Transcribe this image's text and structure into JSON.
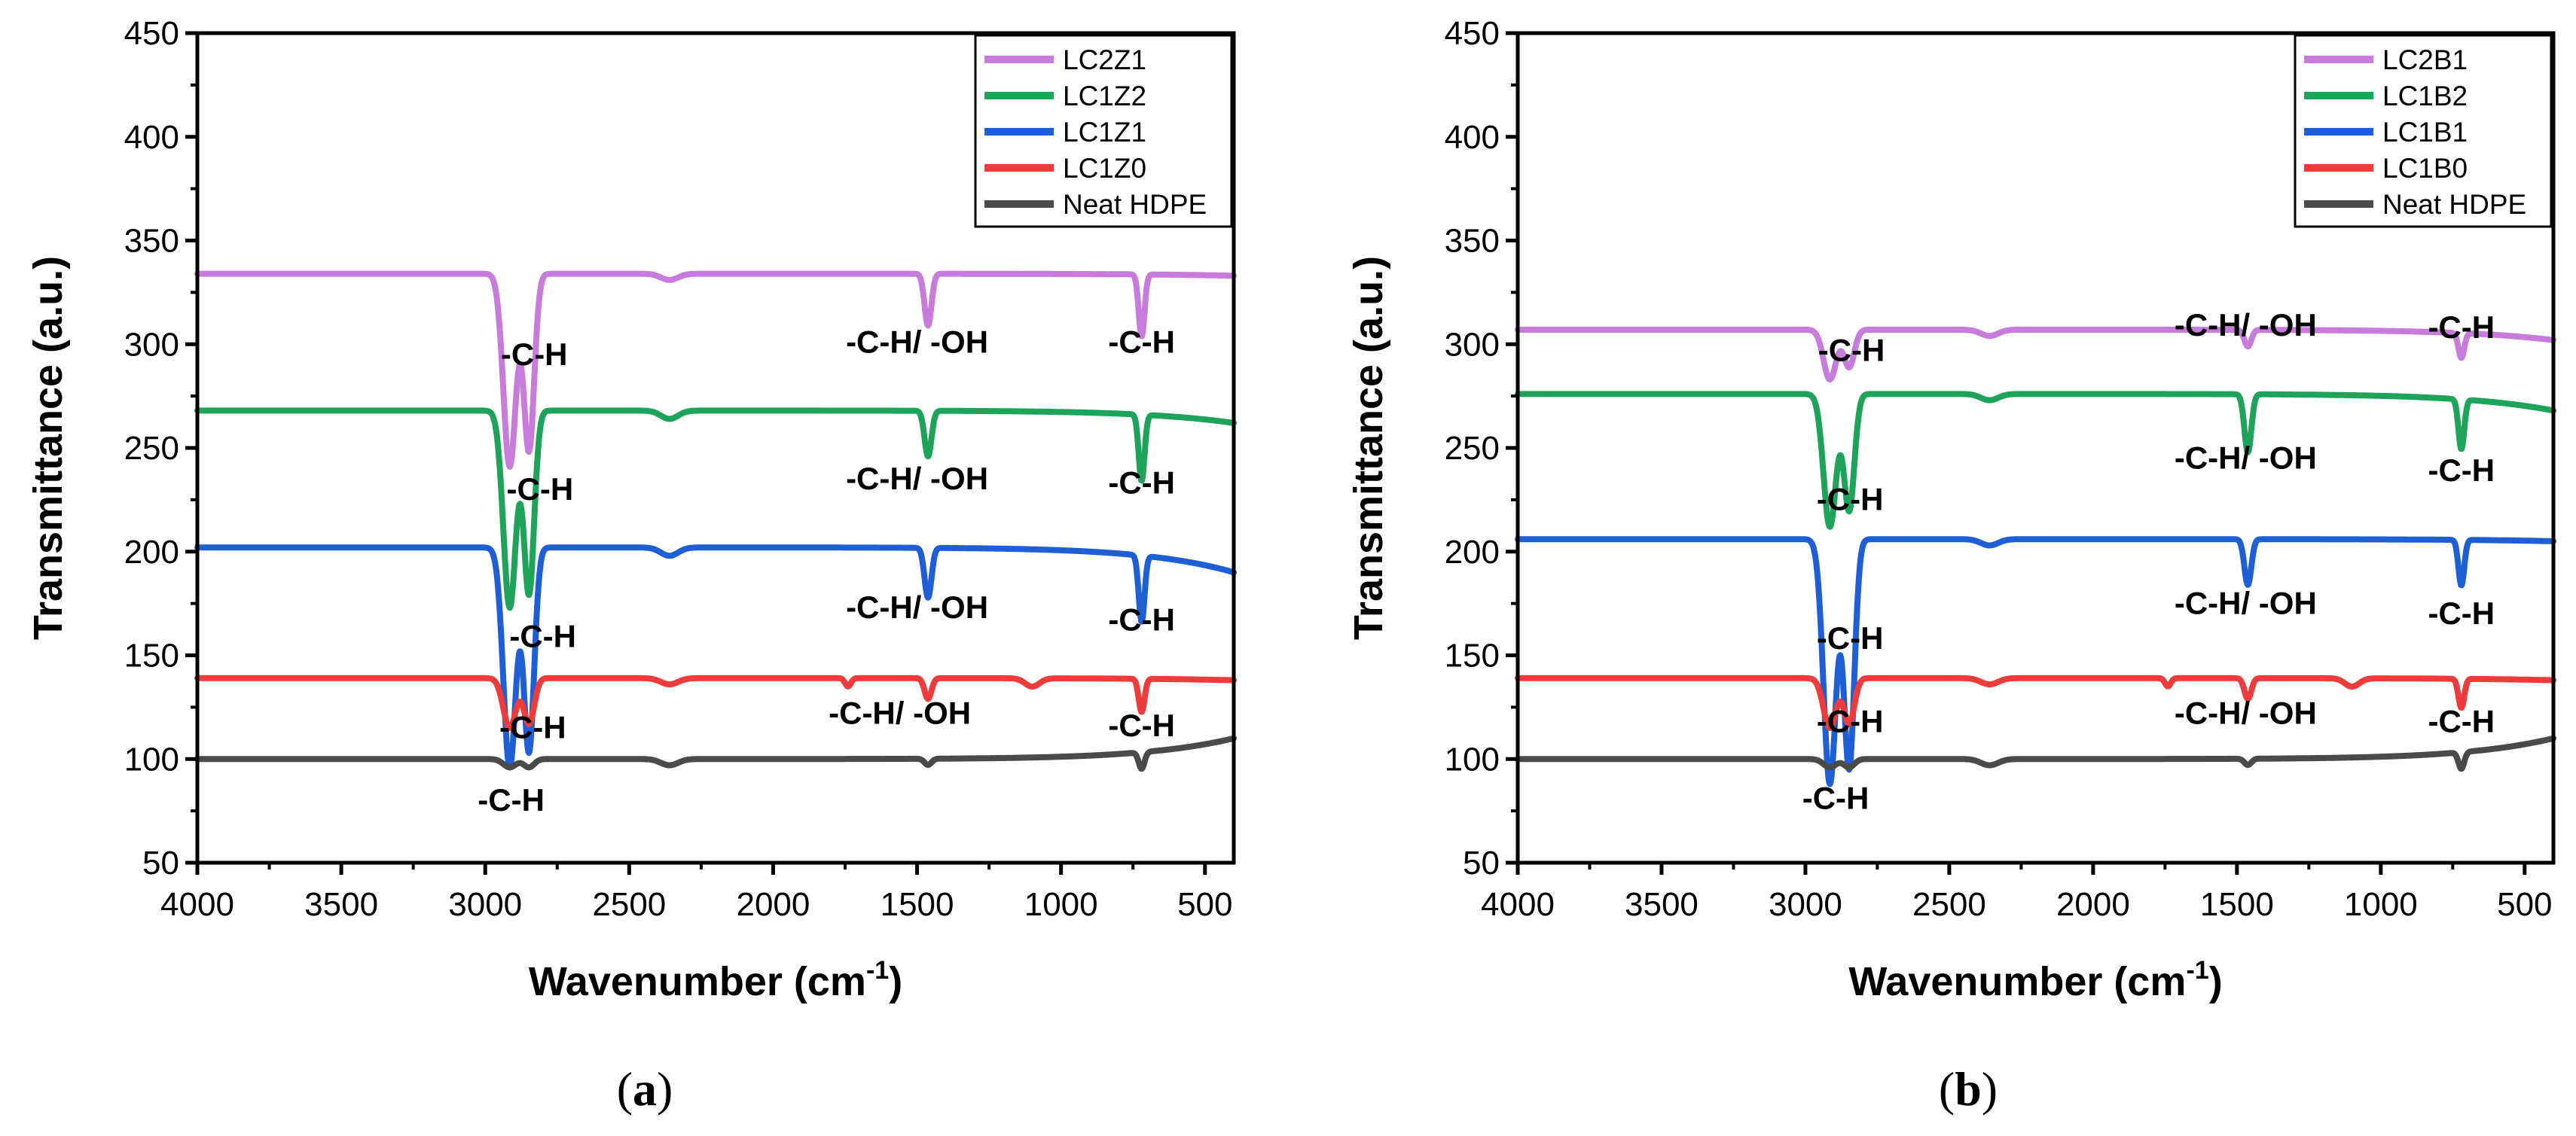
{
  "chart_data": [
    {
      "panel_label": "(a)",
      "type": "line",
      "xlabel_main": "Wavenumber (cm",
      "xlabel_sup": "-1",
      "xlabel_end": ")",
      "ylabel": "Transmittance (a.u.)",
      "xlim": [
        4000,
        400
      ],
      "ylim": [
        50,
        450
      ],
      "xticks": [
        4000,
        3500,
        3000,
        2500,
        2000,
        1500,
        1000,
        500
      ],
      "yticks": [
        50,
        100,
        150,
        200,
        250,
        300,
        350,
        400,
        450
      ],
      "legend_position": "top-right",
      "series": [
        {
          "name": "LC2Z1",
          "color": "#c77cdb",
          "baseline": 334,
          "end_value": 333,
          "peaks": [
            [
              2915,
              93,
              22
            ],
            [
              2848,
              85,
              18
            ],
            [
              2360,
              3,
              30
            ],
            [
              1462,
              25,
              12
            ],
            [
              720,
              30,
              10
            ]
          ]
        },
        {
          "name": "LC1Z2",
          "color": "#1ea35a",
          "baseline": 268,
          "end_value": 262,
          "peaks": [
            [
              2915,
              95,
              22
            ],
            [
              2848,
              88,
              18
            ],
            [
              2360,
              4,
              30
            ],
            [
              1462,
              22,
              12
            ],
            [
              720,
              32,
              10
            ]
          ]
        },
        {
          "name": "LC1Z1",
          "color": "#1f5fd6",
          "baseline": 202,
          "end_value": 190,
          "peaks": [
            [
              2915,
              106,
              22
            ],
            [
              2848,
              98,
              18
            ],
            [
              2360,
              4,
              30
            ],
            [
              1462,
              24,
              12
            ],
            [
              720,
              32,
              10
            ]
          ]
        },
        {
          "name": "LC1Z0",
          "color": "#ee3b3b",
          "baseline": 139,
          "end_value": 138,
          "peaks": [
            [
              2915,
              24,
              22
            ],
            [
              2848,
              22,
              18
            ],
            [
              2360,
              3,
              30
            ],
            [
              1740,
              4,
              10
            ],
            [
              1462,
              10,
              12
            ],
            [
              1100,
              4,
              25
            ],
            [
              720,
              16,
              10
            ]
          ]
        },
        {
          "name": "Neat HDPE",
          "color": "#4a4a4a",
          "baseline": 100,
          "end_value": 110,
          "peaks": [
            [
              2915,
              4,
              22
            ],
            [
              2848,
              4,
              18
            ],
            [
              2360,
              3,
              30
            ],
            [
              1462,
              3,
              12
            ],
            [
              720,
              8,
              10
            ]
          ]
        }
      ],
      "annotations": [
        {
          "text": "-C-H",
          "x": 2830,
          "y": 290
        },
        {
          "text": "-C-H/ -OH",
          "x": 1500,
          "y": 296
        },
        {
          "text": "-C-H",
          "x": 720,
          "y": 296
        },
        {
          "text": "-C-H",
          "x": 2810,
          "y": 225
        },
        {
          "text": "-C-H/ -OH",
          "x": 1500,
          "y": 230
        },
        {
          "text": "-C-H",
          "x": 720,
          "y": 228
        },
        {
          "text": "-C-H",
          "x": 2800,
          "y": 154
        },
        {
          "text": "-C-H/ -OH",
          "x": 1500,
          "y": 168
        },
        {
          "text": "-C-H",
          "x": 720,
          "y": 162
        },
        {
          "text": "-C-H",
          "x": 2835,
          "y": 110
        },
        {
          "text": "-C-H/ -OH",
          "x": 1560,
          "y": 117
        },
        {
          "text": "-C-H",
          "x": 720,
          "y": 111
        },
        {
          "text": "-C-H",
          "x": 2910,
          "y": 75
        }
      ]
    },
    {
      "panel_label": "(b)",
      "type": "line",
      "xlabel_main": "Wavenumber (cm",
      "xlabel_sup": "-1",
      "xlabel_end": ")",
      "ylabel": "Transmittance (a.u.)",
      "xlim": [
        4000,
        400
      ],
      "ylim": [
        50,
        450
      ],
      "xticks": [
        4000,
        3500,
        3000,
        2500,
        2000,
        1500,
        1000,
        500
      ],
      "yticks": [
        50,
        100,
        150,
        200,
        250,
        300,
        350,
        400,
        450
      ],
      "legend_position": "top-right",
      "series": [
        {
          "name": "LC2B1",
          "color": "#c77cdb",
          "baseline": 307,
          "end_value": 302,
          "peaks": [
            [
              2915,
              24,
              22
            ],
            [
              2848,
              18,
              18
            ],
            [
              2360,
              3,
              30
            ],
            [
              1462,
              8,
              12
            ],
            [
              720,
              12,
              10
            ]
          ]
        },
        {
          "name": "LC1B2",
          "color": "#1ea35a",
          "baseline": 276,
          "end_value": 268,
          "peaks": [
            [
              2915,
              64,
              22
            ],
            [
              2848,
              56,
              18
            ],
            [
              2360,
              3,
              30
            ],
            [
              1462,
              28,
              12
            ],
            [
              720,
              24,
              10
            ]
          ]
        },
        {
          "name": "LC1B1",
          "color": "#1f5fd6",
          "baseline": 206,
          "end_value": 205,
          "peaks": [
            [
              2915,
              118,
              22
            ],
            [
              2848,
              110,
              18
            ],
            [
              2360,
              3,
              30
            ],
            [
              1462,
              22,
              12
            ],
            [
              720,
              22,
              10
            ]
          ]
        },
        {
          "name": "LC1B0",
          "color": "#ee3b3b",
          "baseline": 139,
          "end_value": 138,
          "peaks": [
            [
              2915,
              24,
              22
            ],
            [
              2848,
              22,
              18
            ],
            [
              2360,
              3,
              30
            ],
            [
              1740,
              4,
              10
            ],
            [
              1462,
              10,
              12
            ],
            [
              1100,
              4,
              25
            ],
            [
              720,
              14,
              10
            ]
          ]
        },
        {
          "name": "Neat HDPE",
          "color": "#4a4a4a",
          "baseline": 100,
          "end_value": 110,
          "peaks": [
            [
              2915,
              4,
              22
            ],
            [
              2848,
              4,
              18
            ],
            [
              2360,
              3,
              30
            ],
            [
              1462,
              3,
              12
            ],
            [
              720,
              8,
              10
            ]
          ]
        }
      ],
      "annotations": [
        {
          "text": "-C-H",
          "x": 2840,
          "y": 292
        },
        {
          "text": "-C-H/ -OH",
          "x": 1470,
          "y": 304
        },
        {
          "text": "-C-H",
          "x": 720,
          "y": 303
        },
        {
          "text": "-C-H",
          "x": 2845,
          "y": 220
        },
        {
          "text": "-C-H/ -OH",
          "x": 1470,
          "y": 240
        },
        {
          "text": "-C-H",
          "x": 720,
          "y": 234
        },
        {
          "text": "-C-H",
          "x": 2845,
          "y": 153
        },
        {
          "text": "-C-H/ -OH",
          "x": 1470,
          "y": 170
        },
        {
          "text": "-C-H",
          "x": 720,
          "y": 165
        },
        {
          "text": "-C-H",
          "x": 2845,
          "y": 113
        },
        {
          "text": "-C-H/ -OH",
          "x": 1470,
          "y": 117
        },
        {
          "text": "-C-H",
          "x": 720,
          "y": 113
        },
        {
          "text": "-C-H",
          "x": 2895,
          "y": 76
        }
      ]
    }
  ]
}
